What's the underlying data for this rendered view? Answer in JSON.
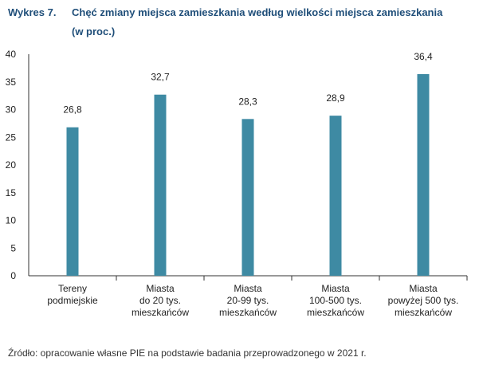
{
  "header": {
    "label": "Wykres 7.",
    "title_line1": "Chęć zmiany miejsca zamieszkania według wielkości miejsca zamieszkania",
    "title_line2": "(w proc.)"
  },
  "chart_data": {
    "type": "bar",
    "title": "Chęć zmiany miejsca zamieszkania według wielkości miejsca zamieszkania (w proc.)",
    "categories": [
      [
        "Tereny",
        "podmiejskie"
      ],
      [
        "Miasta",
        "do 20 tys.",
        "mieszkańców"
      ],
      [
        "Miasta",
        "20-99 tys.",
        "mieszkańców"
      ],
      [
        "Miasta",
        "100-500 tys.",
        "mieszkańców"
      ],
      [
        "Miasta",
        "powyżej 500 tys.",
        "mieszkańców"
      ]
    ],
    "values": [
      26.8,
      32.7,
      28.3,
      28.9,
      36.4
    ],
    "value_labels": [
      "26,8",
      "32,7",
      "28,3",
      "28,9",
      "36,4"
    ],
    "ylim": [
      0,
      40
    ],
    "yticks": [
      0,
      5,
      10,
      15,
      20,
      25,
      30,
      35,
      40
    ],
    "grid": false,
    "legend": "none",
    "bar_color": "#3e8aa3",
    "axis_color": "#333333"
  },
  "footer": {
    "source": "Źródło: opracowanie własne PIE na podstawie badania przeprowadzonego w 2021 r."
  }
}
